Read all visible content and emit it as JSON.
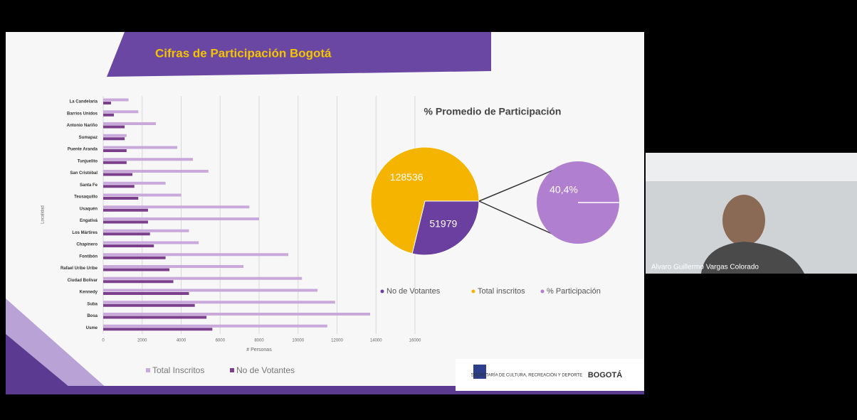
{
  "chart_data": [
    {
      "type": "bar",
      "orientation": "horizontal",
      "y_axis_label": "Localidad",
      "x_axis_label": "# Personas",
      "categories": [
        "La Candelaria",
        "Barrios Unidos",
        "Antonio Nariño",
        "Sumapaz",
        "Puente Aranda",
        "Tunjuelito",
        "San Cristóbal",
        "Santa Fe",
        "Teusaquillo",
        "Usaquén",
        "Engativá",
        "Los Mártires",
        "Chapinero",
        "Fontibón",
        "Rafael Uribe Uribe",
        "Ciudad Bolívar",
        "Kennedy",
        "Suba",
        "Bosa",
        "Usme"
      ],
      "series": [
        {
          "name": "Total Inscritos",
          "color": "#c9a8dc",
          "values": [
            1300,
            1800,
            2700,
            1200,
            3800,
            4600,
            5400,
            3200,
            4000,
            7500,
            8000,
            4400,
            4900,
            9500,
            7200,
            10200,
            11000,
            11900,
            13700,
            11500
          ]
        },
        {
          "name": "No de Votantes",
          "color": "#7b3f8c",
          "values": [
            400,
            550,
            1100,
            1100,
            1200,
            1200,
            1500,
            1600,
            1800,
            2300,
            2300,
            2400,
            2600,
            3200,
            3400,
            3600,
            4400,
            4700,
            5300,
            5600
          ]
        }
      ],
      "xlim": [
        0,
        16000
      ],
      "xticks": [
        0,
        2000,
        4000,
        6000,
        8000,
        10000,
        12000,
        14000,
        16000
      ],
      "grid": true
    },
    {
      "type": "pie-of-pie",
      "title": "% Promedio de Participación",
      "categories": [
        "No de Votantes",
        "Total inscritos",
        "% Participación"
      ],
      "values": [
        51979,
        128536,
        40.4
      ],
      "value_labels": [
        "51979",
        "128536",
        "40,4%"
      ],
      "colors": [
        "#6b3fa0",
        "#f5b400",
        "#b07fd0"
      ]
    }
  ],
  "slide_title": "Cifras de Participación Bogotá",
  "participant_name": "Alvaro Guillermo Vargas Colorado",
  "logos": [
    "SECRETARÍA DE CULTURA, RECREACIÓN Y DEPORTE",
    "BOGOTÁ"
  ]
}
